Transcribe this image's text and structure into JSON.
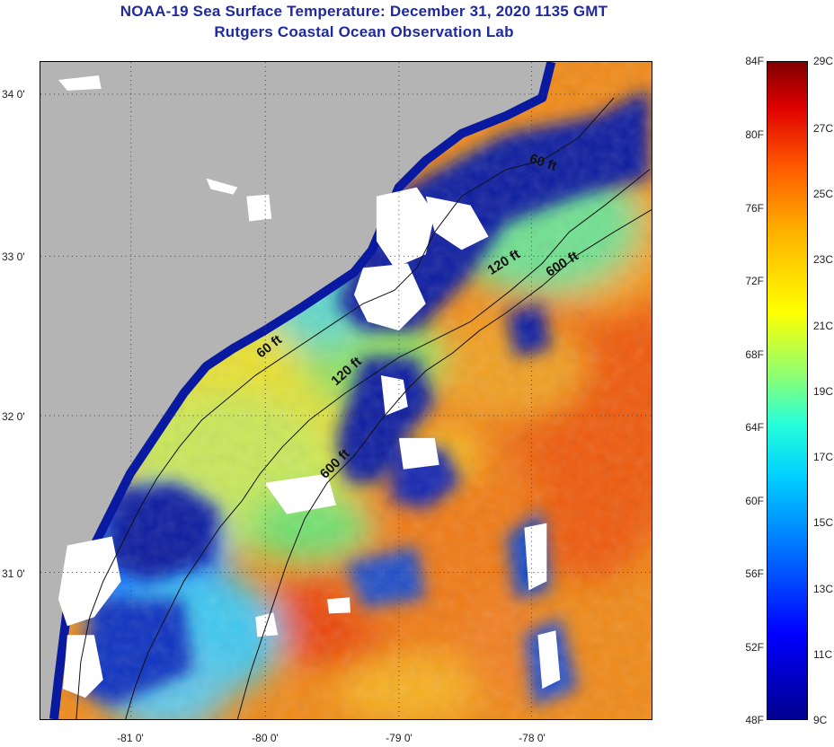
{
  "header": {
    "title": "NOAA-19 Sea Surface Temperature:  December 31, 2020 1135 GMT",
    "subtitle": "Rutgers Coastal Ocean Observation Lab"
  },
  "map": {
    "latitude_labels": [
      "34 0'",
      "33 0'",
      "32 0'",
      "31 0'"
    ],
    "longitude_labels": [
      "-81 0'",
      "-80 0'",
      "-79 0'",
      "-78 0'"
    ],
    "depth_contours": [
      "60 ft",
      "120 ft",
      "600 ft",
      "60 ft",
      "120 ft",
      "600 ft"
    ],
    "colors": {
      "land": "#b4b4b4",
      "cloud": "#ffffff",
      "cold_water": "#0a1aa0"
    }
  },
  "colorbar": {
    "fahrenheit_labels": [
      "84F",
      "80F",
      "76F",
      "72F",
      "68F",
      "64F",
      "60F",
      "56F",
      "52F",
      "48F"
    ],
    "celsius_labels": [
      "29C",
      "27C",
      "25C",
      "23C",
      "21C",
      "19C",
      "17C",
      "15C",
      "13C",
      "11C",
      "9C"
    ]
  }
}
